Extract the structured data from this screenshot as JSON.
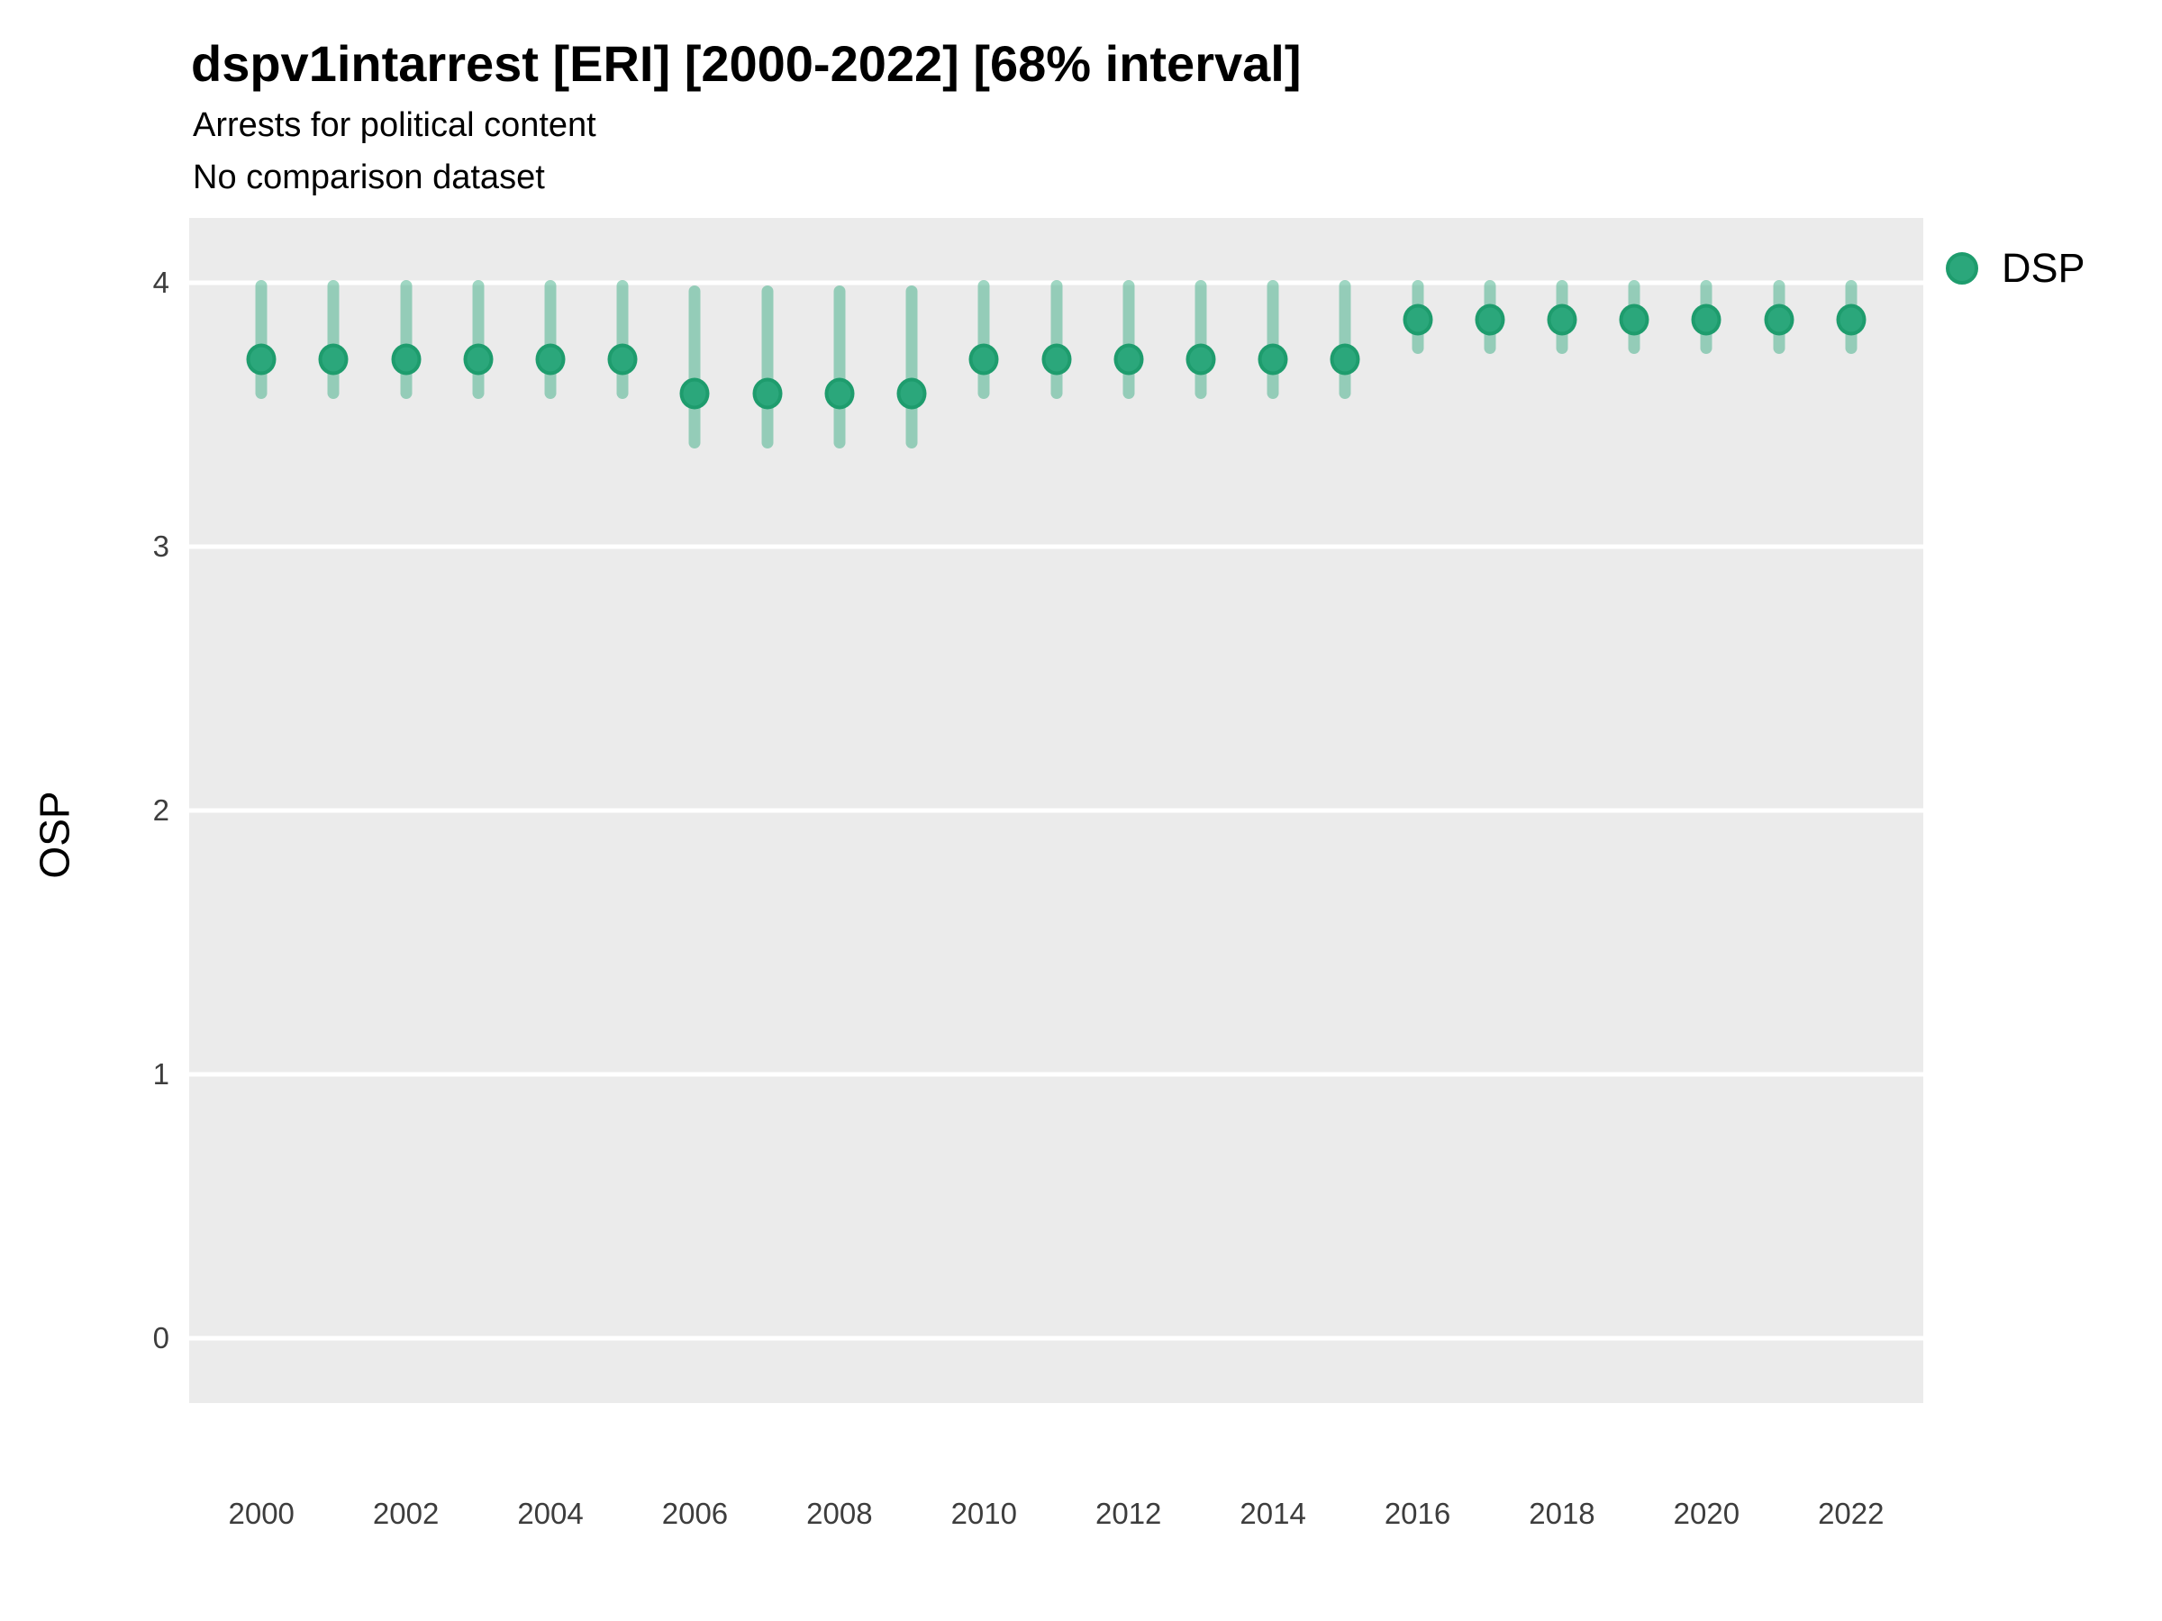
{
  "title": "dspv1intarrest [ERI] [2000-2022] [68% interval]",
  "subtitle1": "Arrests for political content",
  "subtitle2": "No comparison dataset",
  "legend": {
    "label": "DSP",
    "marker": "circle-icon"
  },
  "colors": {
    "panel_background": "#EBEBEB",
    "gridline": "#FFFFFF",
    "point_fill": "#2BA77B",
    "point_stroke": "#1E9C6D",
    "interval_bar": "rgba(43,167,123,0.45)",
    "text": "#000000",
    "tick_text": "#3d3d3d"
  },
  "chart_data": {
    "type": "scatter",
    "title": "dspv1intarrest [ERI] [2000-2022] [68% interval]",
    "subtitle": [
      "Arrests for political content",
      "No comparison dataset"
    ],
    "xlabel": "",
    "ylabel": "OSP",
    "interval": "68%",
    "grid": "horizontal white gridlines on gray panel",
    "legend_position": "top-right-outside",
    "x_ticks": [
      2000,
      2002,
      2004,
      2006,
      2008,
      2010,
      2012,
      2014,
      2016,
      2018,
      2020,
      2022
    ],
    "y_ticks": [
      0,
      1,
      2,
      3,
      4
    ],
    "xlim": [
      1999,
      2023
    ],
    "ylim": [
      -0.245,
      4.245
    ],
    "series": [
      {
        "name": "DSP",
        "x": [
          2000,
          2001,
          2002,
          2003,
          2004,
          2005,
          2006,
          2007,
          2008,
          2009,
          2010,
          2011,
          2012,
          2013,
          2014,
          2015,
          2016,
          2017,
          2018,
          2019,
          2020,
          2021,
          2022
        ],
        "y": [
          3.71,
          3.71,
          3.71,
          3.71,
          3.71,
          3.71,
          3.58,
          3.58,
          3.58,
          3.58,
          3.71,
          3.71,
          3.71,
          3.71,
          3.71,
          3.71,
          3.86,
          3.86,
          3.86,
          3.86,
          3.86,
          3.86,
          3.86
        ],
        "lo": [
          3.56,
          3.56,
          3.56,
          3.56,
          3.56,
          3.56,
          3.37,
          3.37,
          3.37,
          3.37,
          3.56,
          3.56,
          3.56,
          3.56,
          3.56,
          3.56,
          3.73,
          3.73,
          3.73,
          3.73,
          3.73,
          3.73,
          3.73
        ],
        "hi": [
          4.01,
          4.01,
          4.01,
          4.01,
          4.01,
          4.01,
          3.99,
          3.99,
          3.99,
          3.99,
          4.01,
          4.01,
          4.01,
          4.01,
          4.01,
          4.01,
          4.01,
          4.01,
          4.01,
          4.01,
          4.01,
          4.01,
          4.01
        ]
      }
    ]
  }
}
